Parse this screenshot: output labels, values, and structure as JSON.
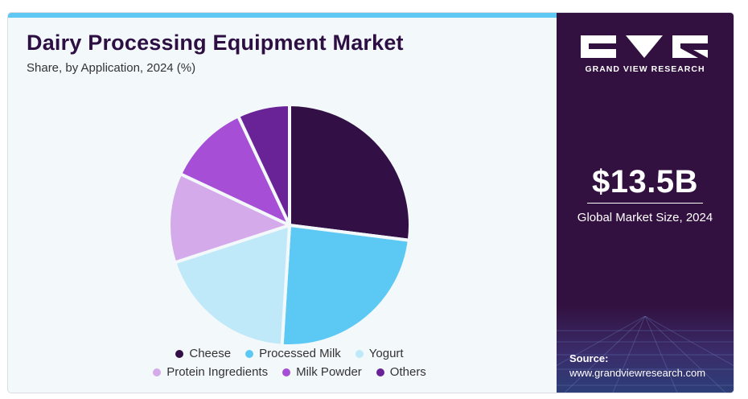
{
  "header": {
    "title": "Dairy Processing Equipment Market",
    "subtitle": "Share, by Application, 2024 (%)"
  },
  "chart_data": {
    "type": "pie",
    "title": "Dairy Processing Equipment Market",
    "subtitle": "Share, by Application, 2024 (%)",
    "categories": [
      "Cheese",
      "Processed Milk",
      "Yogurt",
      "Protein Ingredients",
      "Milk Powder",
      "Others"
    ],
    "values": [
      27,
      24,
      19,
      12,
      11,
      7
    ],
    "colors": [
      "#320f45",
      "#5bc9f4",
      "#bfe9f8",
      "#d5aaea",
      "#a64ed6",
      "#6a2396"
    ],
    "start_angle_deg": 0,
    "direction": "clockwise",
    "legend_position": "bottom"
  },
  "sidebar": {
    "brand": "GRAND VIEW RESEARCH",
    "market_size": "$13.5B",
    "market_size_label": "Global Market Size, 2024",
    "source_label": "Source:",
    "source_url": "www.grandviewresearch.com",
    "accent_color": "#32103f"
  }
}
